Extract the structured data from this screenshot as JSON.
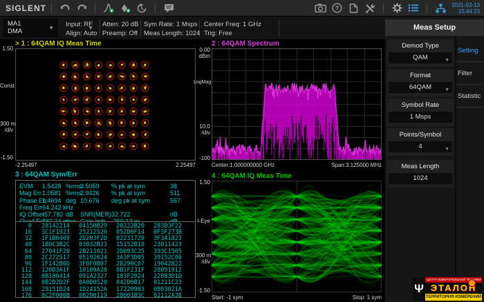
{
  "topbar": {
    "brand": "SIGLENT",
    "date": "2021-03-13",
    "time": "15:44:23",
    "icons_left": [
      "undo-icon",
      "redo-icon",
      "peak-search-icon",
      "marker-add-icon",
      "history-icon",
      "message-icon"
    ],
    "icons_right": [
      "camera-icon",
      "help-icon",
      "file-icon",
      "tools-icon",
      "gear-icon",
      "list-icon",
      "network-icon"
    ],
    "accent_color": "#35a0e0"
  },
  "statusbar": {
    "channel": {
      "line1": "MA1",
      "line2": "DMA"
    },
    "fields": [
      {
        "line1": "Input: RF",
        "line2": "Align: Auto"
      },
      {
        "line1": "Atten: 20 dB",
        "line2": "Preamp: Off"
      },
      {
        "line1": "Sym Rate: 1 Msps",
        "line2": "Meas Length: 1024"
      },
      {
        "line1": "Center Freq: 1 GHz",
        "line2": "Trig: Free"
      }
    ]
  },
  "panels": {
    "p1": {
      "header": "> 1 : 64QAM  IQ Meas Time",
      "y_top": "1.50",
      "y_mid": "Const",
      "y_scale1": "300 m",
      "y_scale2": "/div",
      "y_bottom": "-1.50",
      "x_left": "-2.25497",
      "x_right": "2.25497",
      "trace_color": "#ffd71e",
      "ring_color": "#b4190f"
    },
    "p2": {
      "header": "2 : 64QAM  Spectrum",
      "ref1": "0.00",
      "ref2": "dBm",
      "y_mid": "LogMag",
      "y_scale1": "10.0",
      "y_scale2": "/div",
      "y_bottom": "-100",
      "x_left": "Center:1.000000000 GHz",
      "x_right": "Span:3.125000 MHz",
      "trace_color": "#e800e8"
    },
    "p3": {
      "header": "3 : 64QAM  Sym/Err",
      "meas_rows": [
        [
          "EVM",
          "1.5428",
          "%rms",
          "3.5059",
          "% pk at sym",
          "38"
        ],
        [
          "Mag Err",
          "1.0581",
          "%rms",
          "2.9426",
          "% pk at sym",
          "511"
        ],
        [
          "Phase Err",
          "1.4694",
          "deg",
          "10.676",
          "deg pk at sym",
          "567"
        ],
        [
          "Freq Err",
          "64.242 k",
          "Hz",
          "",
          "",
          ""
        ],
        [
          "IQ Offset",
          "-57.782",
          "dB",
          "SNR(MER)",
          "32.722",
          "dB"
        ],
        [
          "Quad Err",
          "787.24 m",
          "deg",
          "Gain Imb",
          "-259.12 m",
          "dB"
        ]
      ],
      "hex_rows": [
        [
          "0",
          "28142214",
          "04150B29",
          "20222B20",
          "283D3F22"
        ],
        [
          "16",
          "3C1F1923",
          "25212520",
          "052D0F14",
          "0F3F273B"
        ],
        [
          "32",
          "1F1B0409",
          "2D203F2D",
          "02231720",
          "3F3A1823"
        ],
        [
          "48",
          "1B0C3B2C",
          "03032B23",
          "15152B10",
          "23011423"
        ],
        [
          "64",
          "27041F20",
          "2B211021",
          "2D093C25",
          "393C1505"
        ],
        [
          "80",
          "2C272517",
          "05192024",
          "3A3F3D05",
          "39152C00"
        ],
        [
          "96",
          "1F142B0D",
          "3F0F0B07",
          "2B290C07",
          "19042822"
        ],
        [
          "112",
          "120D3A1F",
          "10100A20",
          "0B1F231F",
          "28091912"
        ],
        [
          "128",
          "0B180414",
          "091A2327",
          "183F2024",
          "22083D1D"
        ],
        [
          "144",
          "0B2D2D2F",
          "0A0D0520",
          "042D0B17",
          "01211C23"
        ],
        [
          "160",
          "29151D24",
          "1D24152A",
          "17220903",
          "0803021A"
        ],
        [
          "176",
          "0C2F000B",
          "08290119",
          "28001B3C",
          "02112A3B"
        ]
      ]
    },
    "p4": {
      "header": "4 : 64QAM  IQ Meas Time",
      "y_top": "1.50",
      "y_mid": "I-Eye",
      "y_scale1": "300 m",
      "y_scale2": "/div",
      "y_bottom": "-1.50",
      "x_left": "Start: -1 sym",
      "x_right": "Stop: 1 sym",
      "trace_color": "#00dc00"
    }
  },
  "sidebar": {
    "title": "Meas Setup",
    "buttons": [
      {
        "label": "Demod Type",
        "value": "QAM",
        "dropdown": true
      },
      {
        "label": "Format",
        "value": "64QAM",
        "dropdown": true
      },
      {
        "label": "Symbol Rate",
        "value": "1 Msps",
        "dropdown": false
      },
      {
        "label": "Points/Symbol",
        "value": "4",
        "dropdown": true
      },
      {
        "label": "Meas Length",
        "value": "1024",
        "dropdown": false
      }
    ],
    "tabs": [
      {
        "label": "Setting",
        "active": true
      },
      {
        "label": "Filter",
        "active": false
      },
      {
        "label": "Statistic",
        "active": false
      }
    ],
    "active_tab_color": "#3fa0ff"
  },
  "watermark": {
    "line1": "ЦЕНТР ИЗМЕРИТЕЛЬНОЙ ТЕХНИКИ",
    "brand": "ЭТАЛОН",
    "line3": "ТЕРРИТОРИЯ ИЗМЕРЕНИЙ",
    "colors": {
      "red": "#c00000",
      "yellow": "#ffd400"
    }
  },
  "chart_data": [
    {
      "type": "scatter",
      "panel": 1,
      "title": "64QAM IQ Meas Time (constellation)",
      "grid_rows": 8,
      "grid_cols": 8,
      "i_levels": [
        -1.08,
        -0.772,
        -0.463,
        -0.154,
        0.154,
        0.463,
        0.772,
        1.08
      ],
      "q_levels": [
        -1.08,
        -0.772,
        -0.463,
        -0.154,
        0.154,
        0.463,
        0.772,
        1.08
      ],
      "xlim": [
        -2.25497,
        2.25497
      ],
      "ylim": [
        -1.5,
        1.5
      ],
      "y_per_div": 0.3
    },
    {
      "type": "line",
      "panel": 2,
      "title": "64QAM Spectrum",
      "center_freq_hz": 1000000000,
      "span_hz": 3125000,
      "ref_level_dbm": 0,
      "db_per_div": 10,
      "ylim": [
        -100,
        0
      ],
      "noise_floor_dbm": -88,
      "channel_top_dbm": -33,
      "channel_start_frac": 0.3,
      "channel_stop_frac": 0.74
    },
    {
      "type": "table",
      "panel": 3,
      "title": "64QAM Sym/Err",
      "metrics": {
        "evm_rms_pct": 1.5428,
        "evm_pk_pct": 3.5059,
        "evm_pk_sym": 38,
        "mag_err_rms_pct": 1.0581,
        "mag_err_pk_pct": 2.9426,
        "mag_err_pk_sym": 511,
        "phase_err_rms_deg": 1.4694,
        "phase_err_pk_deg": 10.676,
        "phase_err_pk_sym": 567,
        "freq_err_hz": 64242,
        "iq_offset_db": -57.782,
        "snr_mer_db": 32.722,
        "quad_err_deg": 0.78724,
        "gain_imb_db": -0.25912
      }
    },
    {
      "type": "line",
      "subtype": "eye",
      "panel": 4,
      "title": "64QAM IQ Meas Time (I-Eye)",
      "start_sym": -1,
      "stop_sym": 1,
      "ylim": [
        -1.5,
        1.5
      ],
      "y_per_div": 0.3,
      "levels": [
        -1.08,
        -0.772,
        -0.463,
        -0.154,
        0.154,
        0.463,
        0.772,
        1.08
      ]
    }
  ]
}
